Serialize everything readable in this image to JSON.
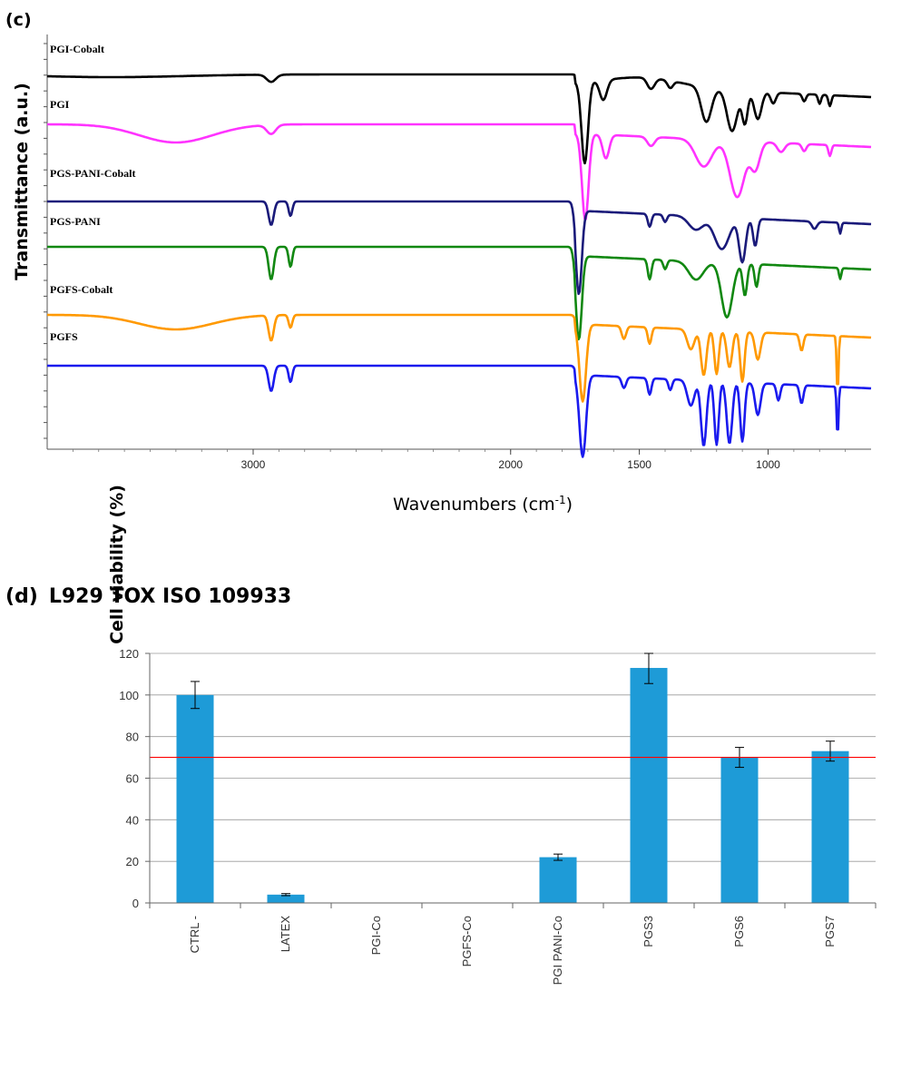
{
  "chart_data": [
    {
      "type": "line",
      "panel_label": "(c)",
      "title": "",
      "xlabel": "Wavenumbers (cm",
      "xlabel_sup": "-1",
      "xlabel_close": ")",
      "ylabel": "Transmittance (a.u.)",
      "xlim": [
        3800,
        600
      ],
      "x_reversed": true,
      "x_ticks": [
        {
          "value": 3000,
          "label": "3000"
        },
        {
          "value": 2000,
          "label": "2000"
        },
        {
          "value": 1500,
          "label": "1500"
        },
        {
          "value": 1000,
          "label": "1000"
        }
      ],
      "grid": false,
      "series": [
        {
          "name": "PGI-Cobalt",
          "color": "#000000",
          "offset": 0
        },
        {
          "name": "PGI",
          "color": "#ff33ff",
          "offset": 1
        },
        {
          "name": "PGS-PANI-Cobalt",
          "color": "#1a1a7a",
          "offset": 2
        },
        {
          "name": "PGS-PANI",
          "color": "#118811",
          "offset": 3
        },
        {
          "name": "PGFS-Cobalt",
          "color": "#ff9900",
          "offset": 4
        },
        {
          "name": "PGFS",
          "color": "#1a1aee",
          "offset": 5
        }
      ]
    },
    {
      "type": "bar",
      "panel_label": "(d)",
      "title": "L929 TOX ISO 109933",
      "xlabel": "",
      "ylabel": "Cell viability (%)",
      "ylim": [
        0,
        120
      ],
      "y_ticks": [
        0,
        20,
        40,
        60,
        80,
        100,
        120
      ],
      "grid": true,
      "bar_color": "#1e9bd7",
      "threshold": {
        "value": 70,
        "color": "#ff0000"
      },
      "categories": [
        "CTRL -",
        "LATEX",
        "PGI-Co",
        "PGFS-Co",
        "PGI PANI-Co",
        "PGS3",
        "PGS6",
        "PGS7"
      ],
      "values": [
        100,
        4,
        0,
        0,
        22,
        113,
        70,
        73
      ],
      "errors": [
        6.5,
        0.5,
        0,
        0,
        1.5,
        7.5,
        4.8,
        4.8
      ]
    }
  ]
}
